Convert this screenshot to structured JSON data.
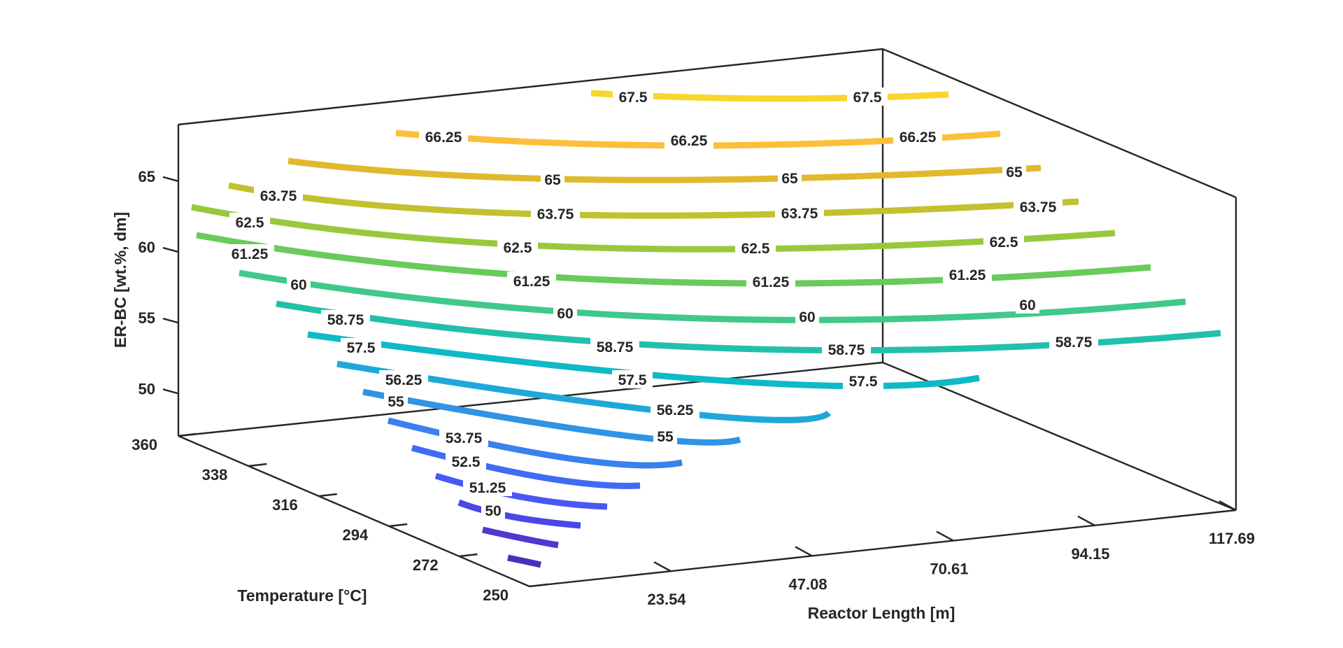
{
  "chart_data": {
    "type": "contour",
    "title": "",
    "xlabel": "Reactor Length [m]",
    "ylabel": "Temperature [°C]",
    "zlabel": "ER-BC [wt.%, dm]",
    "x_ticks": [
      "23.54",
      "47.08",
      "70.61",
      "94.15",
      "117.69"
    ],
    "y_ticks": [
      "250",
      "272",
      "294",
      "316",
      "338",
      "360"
    ],
    "z_ticks": [
      "50",
      "55",
      "60",
      "65"
    ],
    "xlim": [
      0,
      117.69
    ],
    "ylim": [
      250,
      360
    ],
    "zlim": [
      47,
      69
    ],
    "grid": false,
    "levels": [
      {
        "value": 67.5,
        "label": "67.5",
        "color": "#f9d62d"
      },
      {
        "value": 66.25,
        "label": "66.25",
        "color": "#fbbf3a"
      },
      {
        "value": 65,
        "label": "65",
        "color": "#e0b92e"
      },
      {
        "value": 63.75,
        "label": "63.75",
        "color": "#c2c12f"
      },
      {
        "value": 62.5,
        "label": "62.5",
        "color": "#99c83f"
      },
      {
        "value": 61.25,
        "label": "61.25",
        "color": "#68cb5a"
      },
      {
        "value": 60,
        "label": "60",
        "color": "#3fc98a"
      },
      {
        "value": 58.75,
        "label": "58.75",
        "color": "#22c0aa"
      },
      {
        "value": 57.5,
        "label": "57.5",
        "color": "#0fb9c6"
      },
      {
        "value": 56.25,
        "label": "56.25",
        "color": "#1ea8d8"
      },
      {
        "value": 55,
        "label": "55",
        "color": "#2f93e6"
      },
      {
        "value": 53.75,
        "label": "53.75",
        "color": "#3a80ee"
      },
      {
        "value": 52.5,
        "label": "52.5",
        "color": "#3f6cf3"
      },
      {
        "value": 51.25,
        "label": "51.25",
        "color": "#4858f2"
      },
      {
        "value": 50,
        "label": "50",
        "color": "#4b46e6"
      },
      {
        "value": 48.75,
        "label": "",
        "color": "#4f37cf"
      },
      {
        "value": 47.5,
        "label": "",
        "color": "#4a2fbe"
      }
    ]
  }
}
